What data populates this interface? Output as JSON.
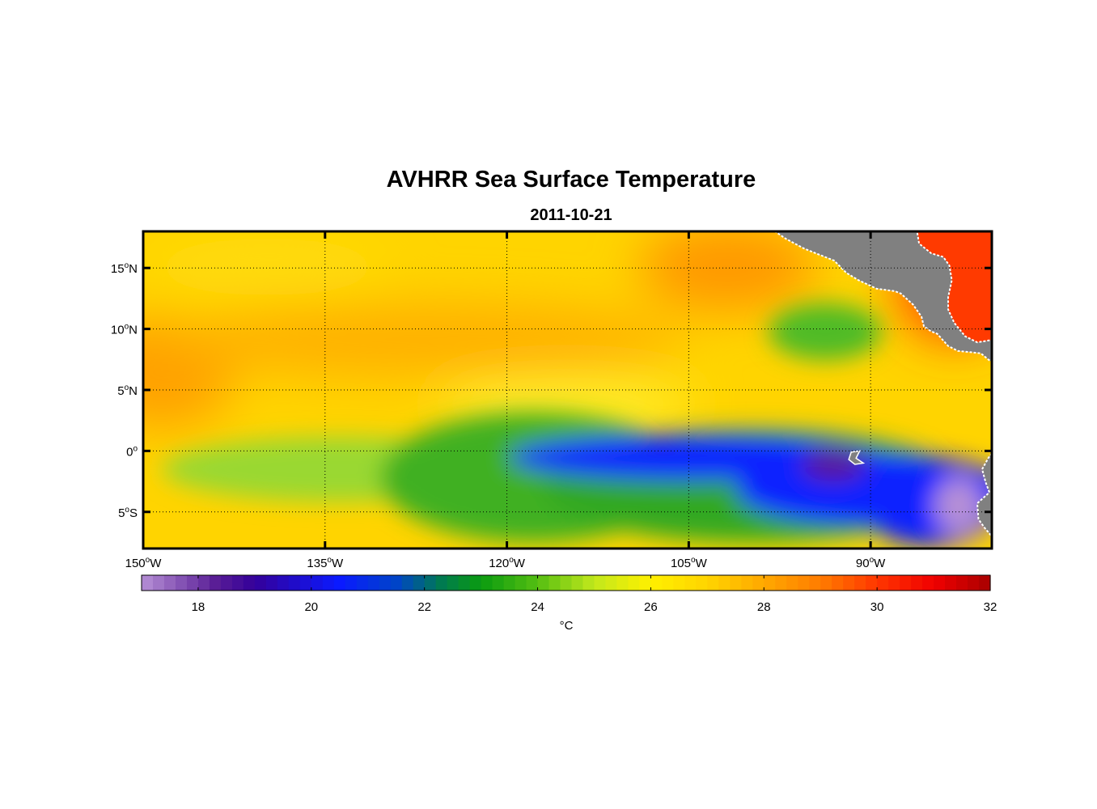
{
  "title": "AVHRR Sea Surface Temperature",
  "date": "2011-10-21",
  "map": {
    "lon_range": [
      -150,
      -80
    ],
    "lat_range": [
      -8,
      18
    ],
    "lon_ticks": [
      {
        "value": -150,
        "deg": "150",
        "hem": "W"
      },
      {
        "value": -135,
        "deg": "135",
        "hem": "W"
      },
      {
        "value": -120,
        "deg": "120",
        "hem": "W"
      },
      {
        "value": -105,
        "deg": "105",
        "hem": "W"
      },
      {
        "value": -90,
        "deg": "90",
        "hem": "W"
      }
    ],
    "lat_ticks": [
      {
        "value": 15,
        "deg": "15",
        "hem": "N"
      },
      {
        "value": 10,
        "deg": "10",
        "hem": "N"
      },
      {
        "value": 5,
        "deg": "5",
        "hem": "N"
      },
      {
        "value": 0,
        "deg": "0",
        "hem": ""
      },
      {
        "value": -5,
        "deg": "5",
        "hem": "S"
      }
    ],
    "land_color": "#808080",
    "grid": "dotted"
  },
  "colorbar": {
    "min": 17,
    "max": 32,
    "ticks": [
      "18",
      "20",
      "22",
      "24",
      "26",
      "28",
      "30",
      "32"
    ],
    "label": "°C",
    "stops": [
      [
        17,
        "#b690d6"
      ],
      [
        18.3,
        "#5a1e96"
      ],
      [
        19,
        "#34009a"
      ],
      [
        20.5,
        "#0a1aff"
      ],
      [
        21.5,
        "#0044c8"
      ],
      [
        22.3,
        "#007a50"
      ],
      [
        23,
        "#0a9c10"
      ],
      [
        24,
        "#55be12"
      ],
      [
        25,
        "#c2e81c"
      ],
      [
        26,
        "#fff000"
      ],
      [
        27,
        "#ffd400"
      ],
      [
        28,
        "#ffa800"
      ],
      [
        29,
        "#ff7c00"
      ],
      [
        30,
        "#ff3600"
      ],
      [
        31,
        "#f00000"
      ],
      [
        32,
        "#a80000"
      ]
    ]
  }
}
